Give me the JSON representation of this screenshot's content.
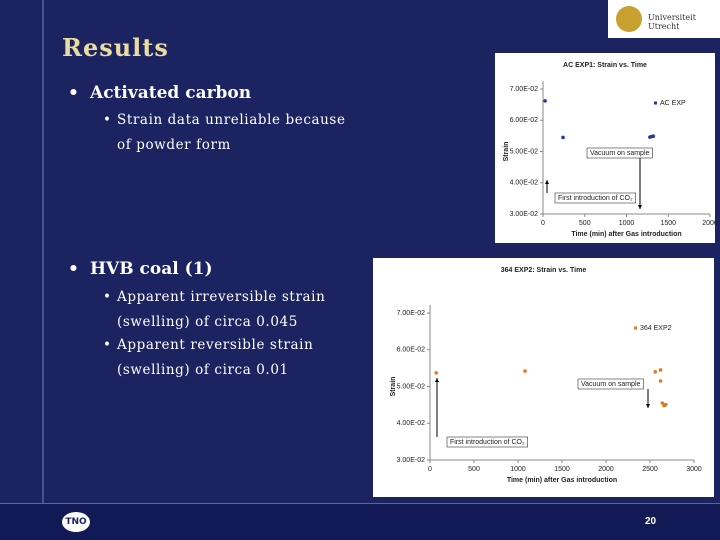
{
  "slide": {
    "title": "Results",
    "logo_top": "Universiteit Utrecht",
    "logo_bottom": "TNO",
    "page_number": "20",
    "bullets": [
      {
        "text": "Activated carbon",
        "sub": [
          "Strain data unreliable because of powder form"
        ]
      },
      {
        "text": "HVB coal (1)",
        "sub": [
          "Apparent irreversible strain (swelling) of circa 0.045",
          "Apparent reversible strain (swelling) of circa 0.01"
        ]
      }
    ]
  },
  "chart_data": [
    {
      "type": "scatter",
      "title": "AC EXP1: Strain vs. Time",
      "x_label": "Time (min) after Gas introduction",
      "y_label": "Strain",
      "xlim": [
        0,
        2000
      ],
      "xticks": [
        0,
        500,
        1000,
        1500,
        2000
      ],
      "ylim": [
        0.03,
        0.07
      ],
      "yticks": [
        {
          "value": 0.07,
          "label": "7.00E-02"
        },
        {
          "value": 0.06,
          "label": "6.00E-02"
        },
        {
          "value": 0.05,
          "label": "5.00E-02"
        },
        {
          "value": 0.04,
          "label": "4.00E-02"
        },
        {
          "value": 0.03,
          "label": "3.00E-02"
        }
      ],
      "annotations": [
        "Vacuum on sample",
        "First introduction of CO₂"
      ],
      "series": [
        {
          "name": "AC EXP",
          "color": "#2a35a0",
          "x": [
            25,
            240,
            1280,
            1300,
            1320
          ],
          "values": [
            0.0662,
            0.0545,
            0.0546,
            0.0548,
            0.0549
          ]
        }
      ]
    },
    {
      "type": "scatter",
      "title": "364 EXP2: Strain vs. Time",
      "x_label": "Time (min) after Gas introduction",
      "y_label": "Strain",
      "xlim": [
        0,
        3000
      ],
      "xticks": [
        0,
        500,
        1000,
        1500,
        2000,
        2500,
        3000
      ],
      "ylim": [
        0.03,
        0.07
      ],
      "yticks": [
        {
          "value": 0.07,
          "label": "7.00E-02"
        },
        {
          "value": 0.06,
          "label": "6.00E-02"
        },
        {
          "value": 0.05,
          "label": "5.00E-02"
        },
        {
          "value": 0.04,
          "label": "4.00E-02"
        },
        {
          "value": 0.03,
          "label": "3.00E-02"
        }
      ],
      "annotations": [
        "Vacuum on sample",
        "First introduction of CO₂"
      ],
      "series": [
        {
          "name": "364 EXP2",
          "color": "#e07a20",
          "x": [
            70,
            1080,
            2560,
            2620,
            2620,
            2640,
            2660,
            2680
          ],
          "values": [
            0.0537,
            0.0542,
            0.054,
            0.0545,
            0.0515,
            0.0455,
            0.0448,
            0.0451
          ]
        }
      ]
    }
  ]
}
